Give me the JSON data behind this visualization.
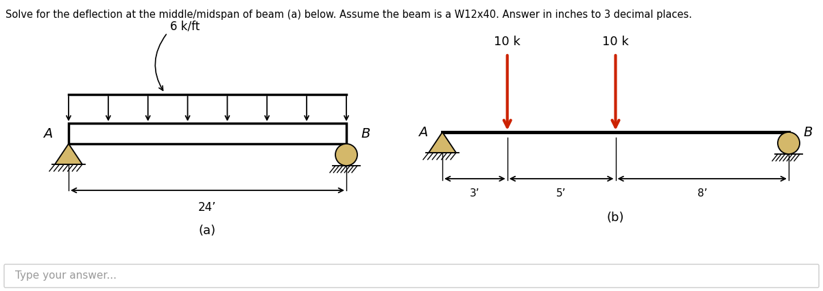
{
  "title": "Solve for the deflection at the middle/midspan of beam (a) below. Assume the beam is a W12x40. Answer in inches to 3 decimal places.",
  "title_fontsize": 10.5,
  "bg_color": "#ffffff",
  "diagram_a": {
    "label": "(a)",
    "dist_load_label": "6 k/ft",
    "dim_label": "24’",
    "support_a_label": "A",
    "support_b_label": "B",
    "num_load_arrows": 8,
    "support_fill": "#d4b86a"
  },
  "diagram_b": {
    "label": "(b)",
    "point_load_1": "10 k",
    "point_load_2": "10 k",
    "dim_1": "3’",
    "dim_2": "5’",
    "dim_3": "8’",
    "support_a_label": "A",
    "support_b_label": "B",
    "load_color": "#cc2200",
    "support_fill": "#d4b86a"
  },
  "answer_box_text": "Type your answer...",
  "answer_box_color": "#ffffff",
  "answer_box_border": "#cccccc"
}
